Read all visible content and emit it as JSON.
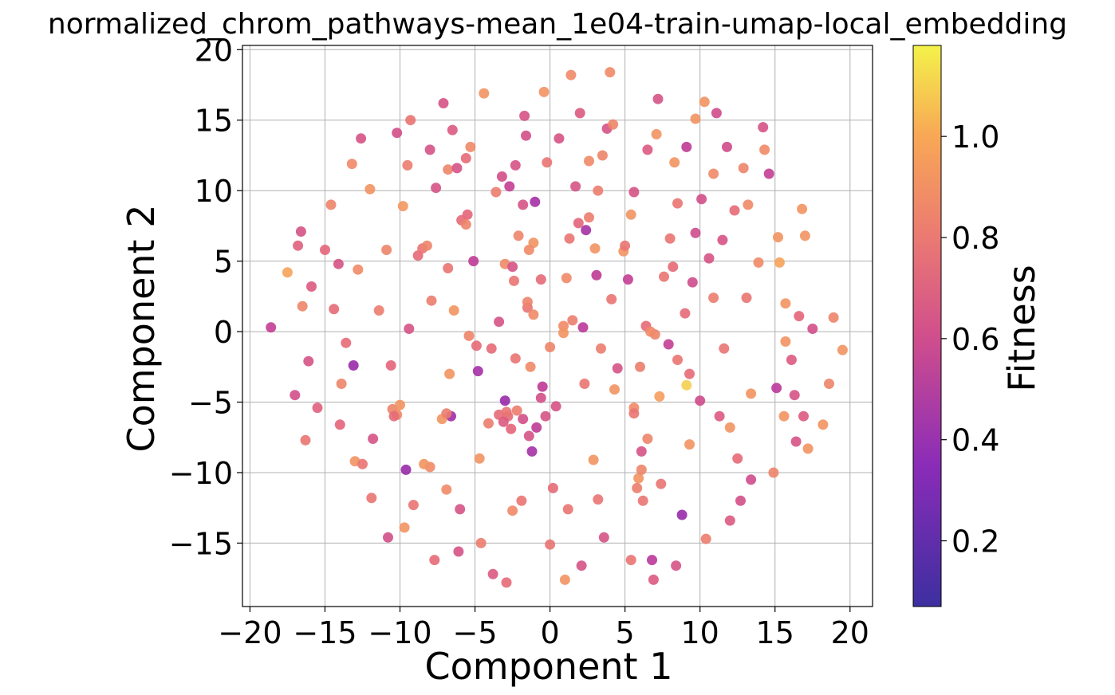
{
  "chart_data": {
    "type": "scatter",
    "title": "normalized_chrom_pathways-mean_1e04-train-umap-local_embedding",
    "xlabel": "Component 1",
    "ylabel": "Component 2",
    "xlim": [
      -20.5,
      21.5
    ],
    "ylim": [
      -19.5,
      20.3
    ],
    "xticks": [
      -20,
      -15,
      -10,
      -5,
      0,
      5,
      10,
      15,
      20
    ],
    "yticks": [
      -15,
      -10,
      -5,
      0,
      5,
      10,
      15,
      20
    ],
    "grid": true,
    "colorbar": {
      "label": "Fitness",
      "range": [
        0.07,
        1.18
      ],
      "ticks": [
        0.2,
        0.4,
        0.6,
        0.8,
        1.0
      ],
      "colormap": "plasma (partial)",
      "stops": [
        "#3d2fa0",
        "#7e21b8",
        "#c03a96",
        "#e4657a",
        "#f7a45a",
        "#f4f24a"
      ]
    },
    "points": [
      [
        -18.6,
        0.3,
        0.62
      ],
      [
        -17.5,
        4.2,
        1.0
      ],
      [
        -17.0,
        -4.5,
        0.7
      ],
      [
        -16.8,
        6.1,
        0.78
      ],
      [
        -16.6,
        7.1,
        0.72
      ],
      [
        -16.5,
        1.8,
        0.9
      ],
      [
        -16.3,
        -7.7,
        0.85
      ],
      [
        -16.1,
        -2.1,
        0.72
      ],
      [
        -15.9,
        3.2,
        0.75
      ],
      [
        -15.5,
        -5.4,
        0.78
      ],
      [
        -15.0,
        5.8,
        0.8
      ],
      [
        -14.6,
        9.0,
        0.9
      ],
      [
        -14.4,
        1.6,
        0.82
      ],
      [
        -14.1,
        4.8,
        0.72
      ],
      [
        -14.0,
        -6.6,
        0.8
      ],
      [
        -13.9,
        -3.7,
        0.9
      ],
      [
        -13.6,
        -0.8,
        0.82
      ],
      [
        -13.2,
        11.9,
        0.92
      ],
      [
        -13.1,
        -2.4,
        0.45
      ],
      [
        -13.0,
        -9.2,
        0.95
      ],
      [
        -12.8,
        4.4,
        0.92
      ],
      [
        -12.6,
        13.7,
        0.72
      ],
      [
        -12.5,
        -9.4,
        0.85
      ],
      [
        -12.0,
        10.1,
        0.95
      ],
      [
        -11.9,
        -11.8,
        0.85
      ],
      [
        -11.8,
        -7.6,
        0.72
      ],
      [
        -11.4,
        1.5,
        0.88
      ],
      [
        -10.9,
        5.8,
        0.9
      ],
      [
        -10.8,
        -14.6,
        0.7
      ],
      [
        -10.6,
        -2.4,
        0.8
      ],
      [
        -10.5,
        -5.5,
        0.9
      ],
      [
        -10.2,
        -5.9,
        0.92
      ],
      [
        -10.2,
        14.1,
        0.7
      ],
      [
        -9.8,
        8.9,
        0.96
      ],
      [
        -9.7,
        -13.9,
        0.95
      ],
      [
        -9.6,
        -9.8,
        0.45
      ],
      [
        -9.5,
        11.8,
        0.88
      ],
      [
        -9.4,
        0.2,
        0.72
      ],
      [
        -9.3,
        15.0,
        0.85
      ],
      [
        -9.1,
        -12.3,
        0.85
      ],
      [
        -8.8,
        5.4,
        0.82
      ],
      [
        -8.5,
        5.9,
        0.85
      ],
      [
        -8.2,
        6.1,
        0.9
      ],
      [
        -8.0,
        -9.6,
        0.92
      ],
      [
        -8.0,
        12.9,
        0.72
      ],
      [
        -7.9,
        2.2,
        0.88
      ],
      [
        -7.7,
        -16.2,
        0.82
      ],
      [
        -7.6,
        10.2,
        0.72
      ],
      [
        -7.1,
        16.2,
        0.72
      ],
      [
        -6.9,
        -11.2,
        0.92
      ],
      [
        -6.8,
        4.5,
        0.85
      ],
      [
        -6.8,
        11.5,
        0.9
      ],
      [
        -6.7,
        -3.0,
        0.95
      ],
      [
        -6.6,
        -6.0,
        0.48
      ],
      [
        -6.5,
        14.3,
        0.75
      ],
      [
        -6.4,
        1.5,
        0.95
      ],
      [
        -6.2,
        11.6,
        0.72
      ],
      [
        -6.1,
        -15.6,
        0.72
      ],
      [
        -6.0,
        -12.6,
        0.72
      ],
      [
        -5.6,
        12.3,
        0.82
      ],
      [
        -5.5,
        8.3,
        0.8
      ],
      [
        -5.3,
        13.1,
        0.92
      ],
      [
        -5.1,
        5.0,
        0.6
      ],
      [
        -4.9,
        -1.0,
        0.82
      ],
      [
        -4.8,
        -2.8,
        0.5
      ],
      [
        -4.7,
        -9.0,
        0.95
      ],
      [
        -4.6,
        -15.0,
        0.88
      ],
      [
        -4.4,
        16.9,
        0.95
      ],
      [
        -4.1,
        -6.5,
        0.88
      ],
      [
        -3.9,
        -1.2,
        0.82
      ],
      [
        -3.8,
        -17.2,
        0.75
      ],
      [
        -3.6,
        9.9,
        0.88
      ],
      [
        -3.4,
        0.7,
        0.72
      ],
      [
        -3.2,
        11.0,
        0.7
      ],
      [
        -3.0,
        4.8,
        0.92
      ],
      [
        -3.0,
        -4.9,
        0.45
      ],
      [
        -2.9,
        -17.8,
        0.82
      ],
      [
        -2.8,
        -6.0,
        0.82
      ],
      [
        -2.7,
        10.3,
        0.62
      ],
      [
        -2.5,
        -12.7,
        0.92
      ],
      [
        -2.4,
        3.6,
        0.85
      ],
      [
        -2.3,
        -1.9,
        0.85
      ],
      [
        -2.1,
        6.8,
        0.9
      ],
      [
        -1.9,
        -12.0,
        0.85
      ],
      [
        -1.7,
        15.3,
        0.72
      ],
      [
        -1.6,
        13.9,
        0.7
      ],
      [
        -1.5,
        1.7,
        0.85
      ],
      [
        -1.3,
        -2.5,
        0.92
      ],
      [
        -1.2,
        -8.5,
        0.5
      ],
      [
        -1.1,
        6.3,
        0.95
      ],
      [
        -1.0,
        9.2,
        0.5
      ],
      [
        -0.9,
        -6.8,
        0.6
      ],
      [
        -0.6,
        3.7,
        0.82
      ],
      [
        -0.4,
        17.0,
        0.95
      ],
      [
        -0.2,
        12.0,
        0.85
      ],
      [
        0.0,
        -15.1,
        0.85
      ],
      [
        0.0,
        -1.1,
        0.9
      ],
      [
        0.2,
        -11.1,
        0.82
      ],
      [
        0.4,
        -5.3,
        0.72
      ],
      [
        0.6,
        13.7,
        0.72
      ],
      [
        0.9,
        0.4,
        0.92
      ],
      [
        1.0,
        -17.6,
        0.95
      ],
      [
        1.1,
        3.8,
        0.92
      ],
      [
        1.2,
        -12.6,
        0.85
      ],
      [
        1.3,
        6.6,
        0.85
      ],
      [
        1.4,
        18.2,
        0.92
      ],
      [
        1.7,
        10.3,
        0.72
      ],
      [
        2.0,
        15.5,
        0.75
      ],
      [
        2.1,
        -16.6,
        0.72
      ],
      [
        2.2,
        0.3,
        0.58
      ],
      [
        2.3,
        -3.7,
        0.85
      ],
      [
        2.4,
        7.2,
        0.5
      ],
      [
        2.6,
        12.1,
        0.92
      ],
      [
        2.9,
        -9.1,
        0.95
      ],
      [
        3.0,
        5.9,
        0.95
      ],
      [
        3.1,
        4.0,
        0.6
      ],
      [
        3.2,
        -11.9,
        0.85
      ],
      [
        3.2,
        10.0,
        0.88
      ],
      [
        3.4,
        -1.2,
        0.88
      ],
      [
        3.6,
        -14.6,
        0.72
      ],
      [
        3.8,
        14.4,
        0.72
      ],
      [
        4.0,
        18.4,
        0.92
      ],
      [
        4.1,
        2.3,
        0.85
      ],
      [
        4.3,
        -4.1,
        0.95
      ],
      [
        4.5,
        -2.6,
        0.72
      ],
      [
        4.9,
        5.7,
        0.95
      ],
      [
        5.2,
        3.7,
        0.62
      ],
      [
        5.4,
        8.3,
        0.95
      ],
      [
        5.4,
        -16.2,
        0.85
      ],
      [
        5.6,
        -5.4,
        0.92
      ],
      [
        5.6,
        9.9,
        0.72
      ],
      [
        5.9,
        -10.4,
        0.95
      ],
      [
        6.0,
        -2.5,
        0.88
      ],
      [
        6.1,
        -8.5,
        0.72
      ],
      [
        6.2,
        -12.0,
        0.85
      ],
      [
        6.4,
        0.4,
        0.82
      ],
      [
        6.5,
        12.9,
        0.75
      ],
      [
        6.8,
        -16.2,
        0.58
      ],
      [
        6.9,
        -17.6,
        0.75
      ],
      [
        7.1,
        14.0,
        0.95
      ],
      [
        7.2,
        16.5,
        0.72
      ],
      [
        7.3,
        -4.6,
        0.98
      ],
      [
        7.4,
        -10.8,
        0.85
      ],
      [
        7.6,
        3.9,
        0.85
      ],
      [
        7.9,
        -0.9,
        0.62
      ],
      [
        8.0,
        6.6,
        0.85
      ],
      [
        8.2,
        4.6,
        0.82
      ],
      [
        8.3,
        12.0,
        0.95
      ],
      [
        8.4,
        -16.6,
        0.72
      ],
      [
        8.5,
        9.1,
        0.85
      ],
      [
        8.8,
        -13.0,
        0.45
      ],
      [
        9.0,
        1.3,
        0.82
      ],
      [
        9.1,
        -3.8,
        1.1
      ],
      [
        9.1,
        13.1,
        0.6
      ],
      [
        9.3,
        -8.0,
        0.95
      ],
      [
        9.5,
        3.5,
        0.68
      ],
      [
        9.7,
        15.1,
        0.95
      ],
      [
        9.7,
        7.0,
        0.68
      ],
      [
        10.0,
        -4.9,
        0.68
      ],
      [
        10.1,
        9.4,
        0.7
      ],
      [
        10.3,
        16.3,
        0.95
      ],
      [
        10.4,
        -14.7,
        0.88
      ],
      [
        10.6,
        5.2,
        0.72
      ],
      [
        10.9,
        2.4,
        0.88
      ],
      [
        10.9,
        11.2,
        0.92
      ],
      [
        11.1,
        15.5,
        0.68
      ],
      [
        11.3,
        -6.0,
        0.75
      ],
      [
        11.5,
        6.5,
        0.72
      ],
      [
        11.6,
        -1.2,
        0.85
      ],
      [
        11.8,
        13.1,
        0.68
      ],
      [
        12.0,
        -13.4,
        0.75
      ],
      [
        12.3,
        8.6,
        0.82
      ],
      [
        12.5,
        -9.0,
        0.82
      ],
      [
        12.7,
        -12.0,
        0.7
      ],
      [
        12.9,
        11.6,
        0.9
      ],
      [
        13.1,
        2.4,
        0.85
      ],
      [
        13.2,
        9.0,
        0.92
      ],
      [
        13.4,
        -10.5,
        0.68
      ],
      [
        13.4,
        -4.4,
        0.95
      ],
      [
        13.9,
        4.9,
        0.92
      ],
      [
        14.2,
        14.5,
        0.72
      ],
      [
        14.3,
        12.9,
        0.92
      ],
      [
        14.6,
        11.2,
        0.62
      ],
      [
        14.9,
        -10.0,
        0.9
      ],
      [
        15.1,
        -4.0,
        0.58
      ],
      [
        15.2,
        6.7,
        0.95
      ],
      [
        15.3,
        4.9,
        1.0
      ],
      [
        15.6,
        -6.0,
        0.95
      ],
      [
        15.7,
        2.0,
        0.95
      ],
      [
        15.7,
        -0.7,
        0.95
      ],
      [
        16.1,
        -2.0,
        0.75
      ],
      [
        16.3,
        -4.5,
        0.72
      ],
      [
        16.4,
        -7.8,
        0.72
      ],
      [
        16.6,
        1.1,
        0.8
      ],
      [
        16.8,
        8.7,
        0.95
      ],
      [
        16.9,
        -6.0,
        0.75
      ],
      [
        17.0,
        6.8,
        0.95
      ],
      [
        17.2,
        -8.3,
        0.95
      ],
      [
        17.5,
        0.2,
        0.7
      ],
      [
        18.2,
        -6.6,
        0.95
      ],
      [
        18.6,
        -3.7,
        0.9
      ],
      [
        18.9,
        1.0,
        0.9
      ],
      [
        19.5,
        -1.3,
        0.95
      ],
      [
        -3.4,
        -5.9,
        0.82
      ],
      [
        -3.1,
        -6.4,
        0.75
      ],
      [
        -2.6,
        -6.9,
        0.8
      ],
      [
        -2.2,
        -5.6,
        0.88
      ],
      [
        -1.8,
        -6.2,
        0.7
      ],
      [
        -1.4,
        -7.4,
        0.72
      ],
      [
        -0.6,
        -4.7,
        0.7
      ],
      [
        -0.3,
        -6.0,
        0.72
      ],
      [
        0.9,
        -0.1,
        0.95
      ],
      [
        1.5,
        0.8,
        0.88
      ],
      [
        -10.4,
        -6.0,
        0.82
      ],
      [
        -10.0,
        -5.2,
        0.95
      ],
      [
        -5.9,
        7.9,
        0.82
      ],
      [
        -5.6,
        7.6,
        0.9
      ],
      [
        -2.5,
        4.6,
        0.72
      ],
      [
        -1.4,
        5.8,
        0.92
      ],
      [
        -1.1,
        1.2,
        0.92
      ],
      [
        5.0,
        6.1,
        0.85
      ],
      [
        5.6,
        -5.8,
        0.85
      ],
      [
        6.5,
        -7.6,
        0.9
      ],
      [
        6.1,
        -9.8,
        0.9
      ],
      [
        5.8,
        -11.1,
        0.88
      ],
      [
        8.5,
        -2.0,
        0.85
      ],
      [
        9.3,
        -3.0,
        0.82
      ],
      [
        12.0,
        -6.8,
        0.95
      ],
      [
        -7.2,
        -6.2,
        0.95
      ],
      [
        -6.9,
        -5.8,
        0.88
      ],
      [
        -8.4,
        -9.4,
        0.95
      ],
      [
        -2.9,
        -5.7,
        0.85
      ],
      [
        -1.8,
        9.0,
        0.72
      ],
      [
        -2.3,
        11.8,
        0.72
      ],
      [
        -5.4,
        -0.3,
        0.9
      ],
      [
        -1.5,
        2.1,
        0.9
      ],
      [
        -0.5,
        -3.9,
        0.6
      ],
      [
        1.9,
        7.7,
        0.8
      ],
      [
        2.6,
        8.1,
        0.88
      ],
      [
        3.5,
        12.5,
        0.9
      ],
      [
        4.2,
        14.7,
        0.9
      ],
      [
        7.0,
        -0.2,
        0.9
      ],
      [
        6.7,
        0.0,
        0.92
      ]
    ]
  }
}
